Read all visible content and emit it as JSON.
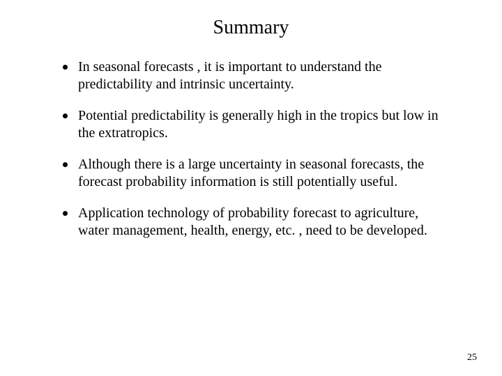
{
  "title": "Summary",
  "bullets": [
    "In seasonal forecasts , it is important to understand the predictability and intrinsic uncertainty.",
    "Potential predictability is generally high in the tropics but low in the extratropics.",
    "Although there is a large uncertainty in seasonal forecasts, the forecast probability information is still potentially useful.",
    "Application technology of probability forecast to agriculture, water management, health, energy, etc. , need to be developed."
  ],
  "page_number": "25",
  "colors": {
    "background": "#ffffff",
    "text": "#000000",
    "bullet": "#000000"
  },
  "typography": {
    "title_fontsize": 28,
    "body_fontsize": 20,
    "page_number_fontsize": 14,
    "font_family": "Times New Roman"
  }
}
